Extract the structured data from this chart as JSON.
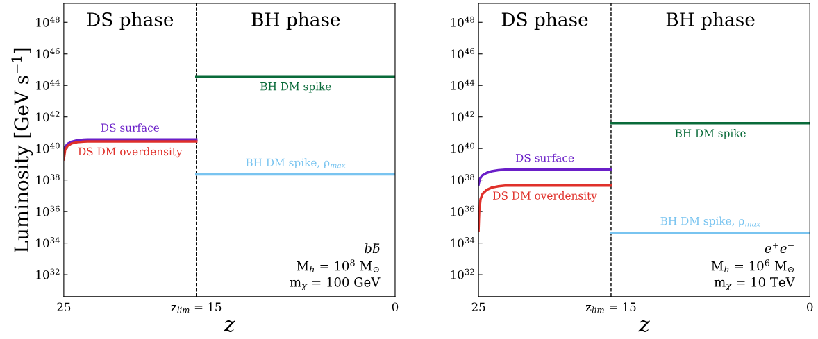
{
  "chart_data": [
    {
      "type": "line",
      "xlabel": "z",
      "ylabel": "Luminosity [GeV s$^{−1}$]",
      "log": "y",
      "grid": false,
      "legend": false,
      "xlim": [
        25,
        0
      ],
      "xticks": [
        25,
        {
          "value": 15,
          "label": "z$_{lim}$ = 15"
        },
        0
      ],
      "ylim": [
        4e+30,
        1.6e+49
      ],
      "yticks": [
        {
          "value": 1e+32,
          "label": "10$^{32}$"
        },
        {
          "value": 1e+34,
          "label": "10$^{34}$"
        },
        {
          "value": 1e+36,
          "label": "10$^{36}$"
        },
        {
          "value": 1e+38,
          "label": "10$^{38}$"
        },
        {
          "value": 1e+40,
          "label": "10$^{40}$"
        },
        {
          "value": 1e+42,
          "label": "10$^{42}$"
        },
        {
          "value": 1e+44,
          "label": "10$^{44}$"
        },
        {
          "value": 1e+46,
          "label": "10$^{46}$"
        },
        {
          "value": 1e+48,
          "label": "10$^{48}$"
        }
      ],
      "ref_lines": [
        {
          "axis": "x",
          "value": 15,
          "color": "#000000",
          "line_style": "dashed"
        }
      ],
      "series": [
        {
          "name": "DS surface",
          "color": "#6a1fc8",
          "x": [
            25,
            24.9,
            24.7,
            24.4,
            24.0,
            23.5,
            23.2,
            15
          ],
          "values": [
            6e+39,
            1.3e+40,
            2e+40,
            2.7e+40,
            3.3e+40,
            3.6e+40,
            3.7e+40,
            3.7e+40
          ]
        },
        {
          "name": "DS DM overdensity",
          "color": "#e0302a",
          "x": [
            25,
            24.9,
            24.7,
            24.4,
            24.0,
            23.5,
            23.2,
            15
          ],
          "values": [
            2e+39,
            8e+39,
            1.5e+40,
            2.1e+40,
            2.5e+40,
            2.75e+40,
            2.8e+40,
            2.8e+40
          ]
        },
        {
          "name": "BH DM spike",
          "color": "#0a6b3a",
          "x": [
            15,
            0
          ],
          "values": [
            3.7e+44,
            3.7e+44
          ]
        },
        {
          "name": "BH DM spike, ρ$_{max}$",
          "color": "#79c4f0",
          "x": [
            15,
            0
          ],
          "values": [
            2.3e+38,
            2.3e+38
          ]
        }
      ],
      "annotations": [
        "DS phase",
        "BH phase",
        "bb̄",
        "M$_{h}$ = 10$^{8}$ M$_{⊙}$",
        "m$_{χ}$ = 100 GeV"
      ]
    },
    {
      "type": "line",
      "xlabel": "z",
      "log": "y",
      "grid": false,
      "legend": false,
      "xlim": [
        25,
        0
      ],
      "xticks": [
        25,
        {
          "value": 15,
          "label": "z$_{lim}$ = 15"
        },
        0
      ],
      "ylim": [
        4e+30,
        1.6e+49
      ],
      "yticks": [
        {
          "value": 1e+32,
          "label": "10$^{32}$"
        },
        {
          "value": 1e+34,
          "label": "10$^{34}$"
        },
        {
          "value": 1e+36,
          "label": "10$^{36}$"
        },
        {
          "value": 1e+38,
          "label": "10$^{38}$"
        },
        {
          "value": 1e+40,
          "label": "10$^{40}$"
        },
        {
          "value": 1e+42,
          "label": "10$^{42}$"
        },
        {
          "value": 1e+44,
          "label": "10$^{44}$"
        },
        {
          "value": 1e+46,
          "label": "10$^{46}$"
        },
        {
          "value": 1e+48,
          "label": "10$^{48}$"
        }
      ],
      "ref_lines": [
        {
          "axis": "x",
          "value": 15,
          "color": "#000000",
          "line_style": "dashed"
        }
      ],
      "series": [
        {
          "name": "DS surface",
          "color": "#6a1fc8",
          "x": [
            25,
            24.9,
            24.7,
            24.4,
            24.0,
            23.5,
            23.0,
            15
          ],
          "values": [
            5e+37,
            1.2e+38,
            2e+38,
            2.8e+38,
            3.6e+38,
            4.2e+38,
            4.5e+38,
            4.5e+38
          ]
        },
        {
          "name": "DS DM overdensity",
          "color": "#e0302a",
          "x": [
            25,
            24.95,
            24.85,
            24.7,
            24.4,
            24.0,
            23.5,
            23.0,
            15
          ],
          "values": [
            6e+34,
            1e+36,
            6e+36,
            1.3e+37,
            2.3e+37,
            3.3e+37,
            4e+37,
            4.4e+37,
            4.4e+37
          ]
        },
        {
          "name": "BH DM spike",
          "color": "#0a6b3a",
          "x": [
            15,
            0
          ],
          "values": [
            4e+41,
            4e+41
          ]
        },
        {
          "name": "BH DM spike, ρ$_{max}$",
          "color": "#79c4f0",
          "x": [
            15,
            0
          ],
          "values": [
            4.5e+34,
            4.5e+34
          ]
        }
      ],
      "annotations": [
        "DS phase",
        "BH phase",
        "e$^{+}$e$^{−}$",
        "M$_{h}$ = 10$^{6}$ M$_{⊙}$",
        "m$_{χ}$ = 10 TeV"
      ]
    }
  ]
}
